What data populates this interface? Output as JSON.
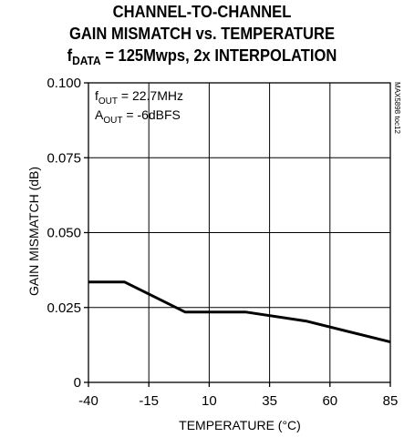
{
  "chart_data": {
    "type": "line",
    "title_lines": [
      "CHANNEL-TO-CHANNEL",
      "GAIN MISMATCH vs. TEMPERATURE"
    ],
    "subtitle": {
      "prefix": "f",
      "subscript": "DATA",
      "suffix": " = 125Mwps, 2x INTERPOLATION"
    },
    "xlabel": "TEMPERATURE (°C)",
    "ylabel": "GAIN MISMATCH (dB)",
    "xlim": [
      -40,
      85
    ],
    "ylim": [
      0,
      0.1
    ],
    "xticks": [
      -40,
      -15,
      10,
      35,
      60,
      85
    ],
    "xtick_labels": [
      "-40",
      "-15",
      "10",
      "35",
      "60",
      "85"
    ],
    "yticks": [
      0,
      0.025,
      0.05,
      0.075,
      0.1
    ],
    "ytick_labels": [
      "0",
      "0.025",
      "0.050",
      "0.075",
      "0.100"
    ],
    "grid": true,
    "series": [
      {
        "x": [
          -40,
          -25,
          0,
          25,
          50,
          85
        ],
        "y": [
          0.0335,
          0.0335,
          0.0235,
          0.0235,
          0.0205,
          0.0135
        ]
      }
    ],
    "annotations": [
      {
        "prefix": "f",
        "subscript": "OUT",
        "suffix": " = 22.7MHz"
      },
      {
        "prefix": "A",
        "subscript": "OUT",
        "suffix": " = -6dBFS"
      }
    ],
    "figure_id": "MAX5898 toc12"
  }
}
